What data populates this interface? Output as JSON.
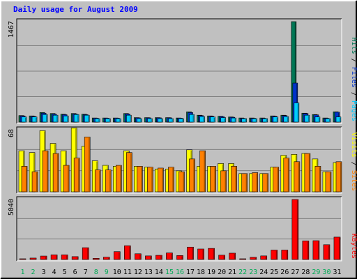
{
  "chart_data": [
    {
      "type": "bar",
      "title": "Daily usage for August 2009",
      "ymax_label": "1467",
      "ylim": [
        0,
        1467
      ],
      "legend": [
        {
          "name": "Pages",
          "color": "#00ccff"
        },
        {
          "name": "Files",
          "color": "#0033cc"
        },
        {
          "name": "Hits",
          "color": "#007755"
        }
      ],
      "categories": [
        "1",
        "2",
        "3",
        "4",
        "5",
        "6",
        "7",
        "8",
        "9",
        "10",
        "11",
        "12",
        "13",
        "14",
        "15",
        "16",
        "17",
        "18",
        "19",
        "20",
        "21",
        "22",
        "23",
        "24",
        "25",
        "26",
        "27",
        "28",
        "29",
        "30",
        "31"
      ],
      "series": [
        {
          "name": "Hits",
          "values": [
            95,
            90,
            140,
            125,
            115,
            125,
            115,
            60,
            60,
            60,
            125,
            65,
            65,
            65,
            65,
            60,
            150,
            100,
            90,
            85,
            75,
            60,
            60,
            60,
            90,
            100,
            1467,
            130,
            110,
            60,
            150
          ]
        },
        {
          "name": "Files",
          "values": [
            90,
            85,
            130,
            115,
            108,
            118,
            108,
            58,
            58,
            58,
            118,
            62,
            62,
            62,
            62,
            58,
            140,
            95,
            85,
            80,
            70,
            55,
            55,
            55,
            85,
            95,
            570,
            125,
            105,
            55,
            145
          ]
        },
        {
          "name": "Pages",
          "values": [
            75,
            75,
            110,
            100,
            90,
            110,
            100,
            50,
            50,
            50,
            100,
            50,
            50,
            50,
            50,
            50,
            110,
            80,
            75,
            65,
            60,
            50,
            50,
            50,
            75,
            80,
            280,
            100,
            75,
            50,
            75
          ]
        }
      ]
    },
    {
      "type": "bar",
      "ymax_label": "68",
      "ylim": [
        0,
        68
      ],
      "legend": [
        {
          "name": "Sites",
          "color": "#ff8000"
        },
        {
          "name": "Visits",
          "color": "#ffff00"
        }
      ],
      "categories": [
        "1",
        "2",
        "3",
        "4",
        "5",
        "6",
        "7",
        "8",
        "9",
        "10",
        "11",
        "12",
        "13",
        "14",
        "15",
        "16",
        "17",
        "18",
        "19",
        "20",
        "21",
        "22",
        "23",
        "24",
        "25",
        "26",
        "27",
        "28",
        "29",
        "30",
        "31"
      ],
      "series": [
        {
          "name": "Visits",
          "values": [
            45,
            43,
            67,
            53,
            45,
            70,
            50,
            34,
            29,
            28,
            45,
            28,
            27,
            25,
            25,
            23,
            46,
            28,
            28,
            31,
            31,
            20,
            20,
            20,
            27,
            40,
            41,
            42,
            36,
            22,
            32
          ]
        },
        {
          "name": "Sites",
          "values": [
            28,
            22,
            45,
            42,
            29,
            37,
            60,
            24,
            24,
            29,
            43,
            28,
            27,
            26,
            27,
            22,
            36,
            45,
            28,
            23,
            28,
            20,
            21,
            20,
            27,
            37,
            33,
            42,
            28,
            22,
            33
          ]
        }
      ]
    },
    {
      "type": "bar",
      "ymax_label": "5040",
      "ylim": [
        0,
        5040
      ],
      "legend": [
        {
          "name": "KBytes",
          "color": "#ff0000"
        }
      ],
      "categories": [
        "1",
        "2",
        "3",
        "4",
        "5",
        "6",
        "7",
        "8",
        "9",
        "10",
        "11",
        "12",
        "13",
        "14",
        "15",
        "16",
        "17",
        "18",
        "19",
        "20",
        "21",
        "22",
        "23",
        "24",
        "25",
        "26",
        "27",
        "28",
        "29",
        "30",
        "31"
      ],
      "series": [
        {
          "name": "KBytes",
          "values": [
            60,
            120,
            290,
            390,
            390,
            240,
            990,
            100,
            190,
            660,
            1150,
            480,
            300,
            350,
            550,
            330,
            1040,
            880,
            930,
            360,
            530,
            60,
            180,
            300,
            790,
            790,
            5040,
            1560,
            1580,
            1240,
            1880
          ]
        }
      ]
    }
  ],
  "colors": {
    "background": "#c0c0c0",
    "plot_background": "#c0c0c0",
    "gridline": "#808080",
    "frame_light": "#ffffff",
    "frame_dark": "#808080",
    "weekday_label": "#000000",
    "weekend_label": "#00aa55"
  },
  "weekend_days": [
    "1",
    "2",
    "8",
    "9",
    "15",
    "16",
    "22",
    "23",
    "29",
    "30"
  ]
}
